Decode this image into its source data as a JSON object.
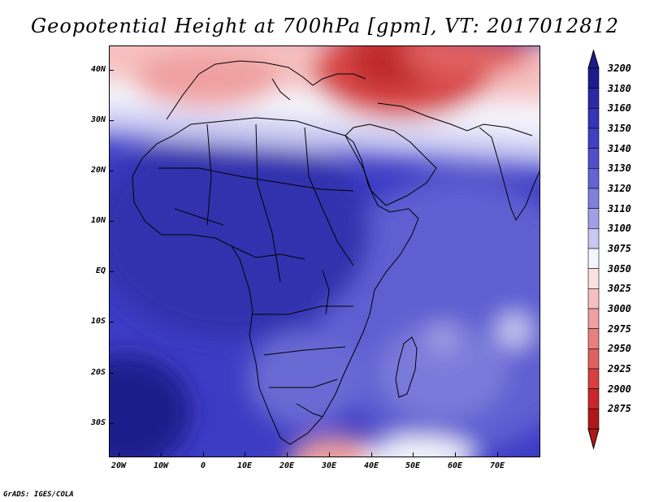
{
  "title": "Geopotential Height at 700hPa [gpm], VT: 2017012812",
  "credit": "GrADS: IGES/COLA",
  "lat_labels": [
    "40N",
    "30N",
    "20N",
    "10N",
    "EQ",
    "10S",
    "20S",
    "30S"
  ],
  "lon_labels": [
    "20W",
    "10W",
    "0",
    "10E",
    "20E",
    "30E",
    "40E",
    "50E",
    "60E",
    "70E"
  ],
  "colorbar": {
    "levels": [
      "3200",
      "3180",
      "3160",
      "3150",
      "3140",
      "3130",
      "3120",
      "3110",
      "3100",
      "3075",
      "3050",
      "3025",
      "3000",
      "2975",
      "2950",
      "2925",
      "2900",
      "2875"
    ],
    "colors": [
      "#1c1c8c",
      "#2a2aa6",
      "#3535b8",
      "#4040c2",
      "#5050ca",
      "#6464d2",
      "#8080dc",
      "#a0a0e6",
      "#c8c8f2",
      "#f4f4fc",
      "#fbe0e0",
      "#f6c0c0",
      "#f0a0a0",
      "#e88080",
      "#e06060",
      "#d84040",
      "#c82828",
      "#b01818"
    ]
  },
  "map": {
    "colors": {
      "ocean_deep": "#3c3cc4",
      "land_main": "#3434b0",
      "indian_ocean": "#5a5ad0",
      "ridge_red": "#d84a4a",
      "transition_white": "#f4f4fc",
      "pink_band": "#f6c0c0",
      "southern_anomaly": "#f0a0a0"
    }
  }
}
